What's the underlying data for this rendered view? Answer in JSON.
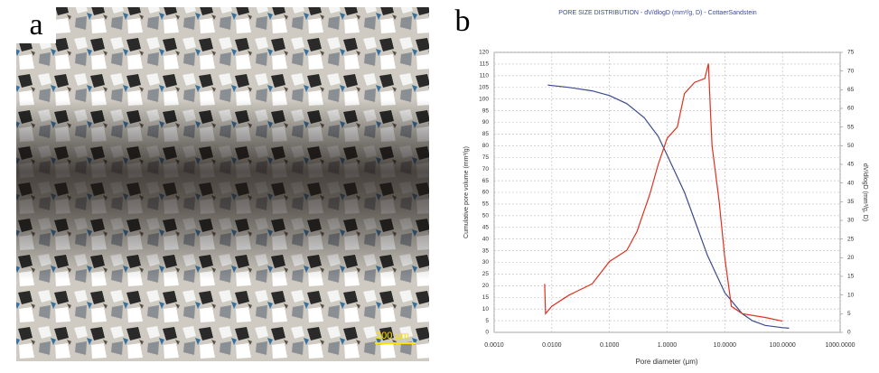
{
  "panel_a": {
    "label": "a",
    "scale_bar": "200 μm"
  },
  "chart_data": {
    "type": "line",
    "panel_label": "b",
    "title": "PORE SIZE DISTRIBUTION - dV/dlogD (mm³/g, D) - CottaerSandstein",
    "x_label": "Pore diameter (μm)",
    "y_label": "Cumulative pore volume (mm³/g)",
    "y2_label": "dV/dlogD (mm³/g, D)",
    "x_scale": "log",
    "grid": true,
    "xlim": [
      0.001,
      1000
    ],
    "xticks": [
      {
        "value": 0.001,
        "label": "0.0010"
      },
      {
        "value": 0.01,
        "label": "0.0100"
      },
      {
        "value": 0.1,
        "label": "0.1000"
      },
      {
        "value": 1,
        "label": "1.0000"
      },
      {
        "value": 10,
        "label": "10.0000"
      },
      {
        "value": 100,
        "label": "100.0000"
      },
      {
        "value": 1000,
        "label": "1000.0000"
      }
    ],
    "ylim": [
      0,
      120
    ],
    "yticks": [
      0,
      5,
      10,
      15,
      20,
      25,
      30,
      35,
      40,
      45,
      50,
      55,
      60,
      65,
      70,
      75,
      80,
      85,
      90,
      95,
      100,
      105,
      110,
      115,
      120
    ],
    "y2lim": [
      0,
      75
    ],
    "y2ticks": [
      0,
      5,
      10,
      15,
      20,
      25,
      30,
      35,
      40,
      45,
      50,
      55,
      60,
      65,
      70,
      75
    ],
    "series": [
      {
        "color": "#3b4a8c",
        "x": [
          0.0085,
          0.02,
          0.05,
          0.1,
          0.2,
          0.4,
          0.7,
          1,
          2,
          3,
          5,
          10,
          20,
          30,
          50,
          100,
          130
        ],
        "values": [
          106,
          105,
          103.5,
          101.5,
          98,
          92,
          84,
          76,
          60,
          48,
          33,
          17,
          8,
          5,
          3,
          2,
          1.8
        ]
      },
      {
        "color": "#e0301e",
        "axis": "y2",
        "x": [
          0.0075,
          0.0078,
          0.01,
          0.02,
          0.05,
          0.1,
          0.2,
          0.3,
          0.5,
          0.7,
          1,
          1.5,
          2,
          3,
          4.5,
          5.2,
          5.6,
          6,
          8,
          10,
          13,
          20,
          50,
          100
        ],
        "values": [
          13,
          5,
          7,
          10,
          13,
          19,
          22,
          27,
          37,
          45,
          52,
          55,
          64,
          67,
          68,
          72,
          60,
          50,
          35,
          20,
          7,
          5,
          4,
          3
        ]
      }
    ]
  }
}
